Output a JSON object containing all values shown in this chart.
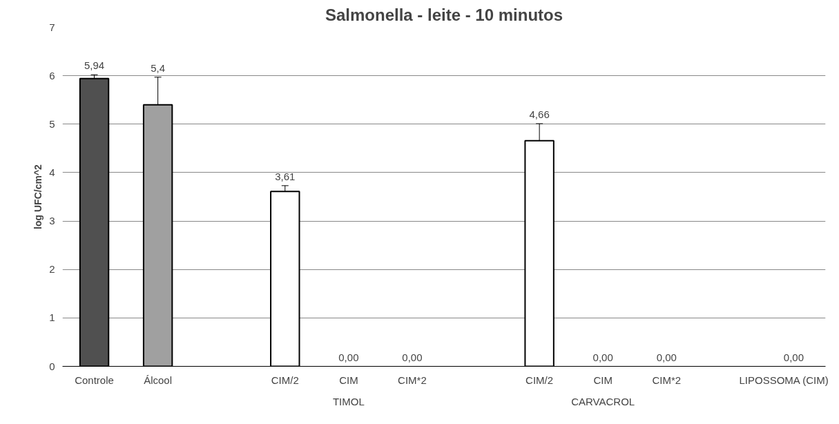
{
  "chart_data": {
    "type": "bar",
    "title": "Salmonella - leite - 10 minutos",
    "ylabel": "log UFC/cm^2",
    "categories": [
      "Controle",
      "Álcool",
      null,
      "CIM/2",
      "CIM",
      "CIM*2",
      null,
      "CIM/2",
      "CIM",
      "CIM*2",
      null,
      "LIPOSSOMA (CIM)"
    ],
    "values": [
      5.94,
      5.4,
      null,
      3.61,
      0,
      0,
      null,
      4.66,
      0,
      0,
      null,
      0
    ],
    "errors": [
      0.08,
      0.57,
      null,
      0.12,
      null,
      null,
      null,
      0.35,
      null,
      null,
      null,
      null
    ],
    "colors": [
      "#505050",
      "#a0a0a0",
      null,
      "#ffffff",
      "#ffffff",
      "#ffffff",
      null,
      "#ffffff",
      "#ffffff",
      "#ffffff",
      null,
      "#ffffff"
    ],
    "value_labels": [
      "5,94",
      "5,4",
      null,
      "3,61",
      "0,00",
      "0,00",
      null,
      "4,66",
      "0,00",
      "0,00",
      null,
      "0,00"
    ],
    "annotations": [
      "TIMOL",
      "CARVACROL"
    ],
    "ylim": [
      0,
      7
    ],
    "yticks": [
      0,
      1,
      2,
      3,
      4,
      5,
      6,
      7
    ],
    "grid": "y"
  }
}
